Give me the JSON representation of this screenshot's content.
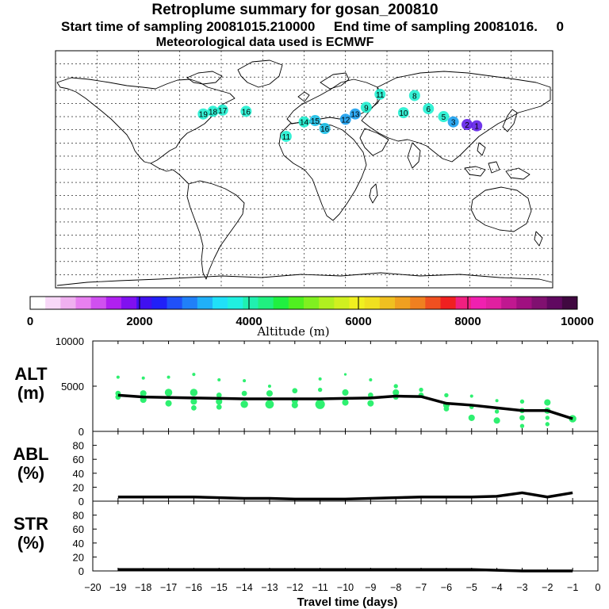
{
  "title_line1": "Retroplume summary for gosan_200810",
  "title_line2": "Start time of sampling 20081015.210000     End time of sampling 20081016.     0",
  "title_line3": "Meteorological data used is ECMWF",
  "map": {
    "plume_labels": [
      {
        "text": "19",
        "lon": -73,
        "lat": 42,
        "color": "#1ff0d0"
      },
      {
        "text": "18",
        "lon": -66,
        "lat": 44,
        "color": "#1ff0d0"
      },
      {
        "text": "17",
        "lon": -59,
        "lat": 45,
        "color": "#1ff0d0"
      },
      {
        "text": "16",
        "lon": -42,
        "lat": 44,
        "color": "#1ff0d0"
      },
      {
        "text": "11",
        "lon": -13,
        "lat": 25,
        "color": "#1ff0d0"
      },
      {
        "text": "14",
        "lon": 0,
        "lat": 36,
        "color": "#1ff0d0"
      },
      {
        "text": "15",
        "lon": 8,
        "lat": 37,
        "color": "#1cc0e8"
      },
      {
        "text": "16",
        "lon": 15,
        "lat": 31,
        "color": "#1cc0e8"
      },
      {
        "text": "12",
        "lon": 30,
        "lat": 38,
        "color": "#1aa0f0"
      },
      {
        "text": "13",
        "lon": 37,
        "lat": 42,
        "color": "#1aa0f0"
      },
      {
        "text": "9",
        "lon": 45,
        "lat": 47,
        "color": "#1ff0d0"
      },
      {
        "text": "10",
        "lon": 72,
        "lat": 43,
        "color": "#1ff0d0"
      },
      {
        "text": "11",
        "lon": 55,
        "lat": 57,
        "color": "#1ff0d0"
      },
      {
        "text": "8",
        "lon": 80,
        "lat": 56,
        "color": "#1ff0d0"
      },
      {
        "text": "6",
        "lon": 90,
        "lat": 46,
        "color": "#1ff0d0"
      },
      {
        "text": "5",
        "lon": 101,
        "lat": 40,
        "color": "#1ff0d0"
      },
      {
        "text": "3",
        "lon": 108,
        "lat": 36,
        "color": "#1aa0f0"
      },
      {
        "text": "2",
        "lon": 118,
        "lat": 34,
        "color": "#6020e8"
      },
      {
        "text": "1",
        "lon": 125,
        "lat": 33,
        "color": "#6020e8"
      }
    ]
  },
  "colorbar": {
    "xlabel": "Altitude (m)",
    "ticks": [
      "0",
      "2000",
      "4000",
      "6000",
      "8000",
      "10000"
    ],
    "colors": [
      "#ffffff",
      "#f8d8f8",
      "#f0b0f0",
      "#e880f0",
      "#d050f0",
      "#b020f0",
      "#8010f0",
      "#4010f0",
      "#2020f8",
      "#2050f8",
      "#2080f8",
      "#20b0f8",
      "#20e0f8",
      "#20f0e0",
      "#20f0b0",
      "#20f080",
      "#20f040",
      "#50f020",
      "#80f020",
      "#b0f020",
      "#d0f020",
      "#f0f020",
      "#f0e020",
      "#f0c020",
      "#f0a020",
      "#f08020",
      "#f05020",
      "#f02020",
      "#f02080",
      "#f020b0",
      "#e020a0",
      "#c01890",
      "#a01080",
      "#801070",
      "#600860",
      "#400840"
    ]
  },
  "chart_data": [
    {
      "type": "line",
      "panel": "ALT",
      "ylabel": "ALT\n(m)",
      "ylim": [
        0,
        10000
      ],
      "yticks": [
        "0",
        "5000",
        "10000"
      ],
      "x": [
        -19,
        -18,
        -17,
        -16,
        -15,
        -14,
        -13,
        -12,
        -11,
        -10,
        -9,
        -8,
        -7,
        -6,
        -5,
        -4,
        -3,
        -2,
        -1
      ],
      "series": [
        {
          "name": "mean altitude",
          "values": [
            4000,
            3800,
            3750,
            3700,
            3650,
            3600,
            3600,
            3600,
            3600,
            3650,
            3700,
            3900,
            3850,
            3100,
            2900,
            2600,
            2300,
            2300,
            1400
          ]
        }
      ],
      "scatter": [
        {
          "x": -19,
          "y": 6000,
          "r": 1.5
        },
        {
          "x": -19,
          "y": 4200,
          "r": 2.5
        },
        {
          "x": -19,
          "y": 3800,
          "r": 2.5
        },
        {
          "x": -18,
          "y": 5900,
          "r": 1.5
        },
        {
          "x": -18,
          "y": 4200,
          "r": 3
        },
        {
          "x": -18,
          "y": 3500,
          "r": 3
        },
        {
          "x": -17,
          "y": 6000,
          "r": 1.5
        },
        {
          "x": -17,
          "y": 4300,
          "r": 3.5
        },
        {
          "x": -17,
          "y": 3100,
          "r": 3
        },
        {
          "x": -16,
          "y": 6300,
          "r": 1.5
        },
        {
          "x": -16,
          "y": 4300,
          "r": 3.5
        },
        {
          "x": -16,
          "y": 3300,
          "r": 3
        },
        {
          "x": -16,
          "y": 2600,
          "r": 2.5
        },
        {
          "x": -15,
          "y": 5700,
          "r": 1.5
        },
        {
          "x": -15,
          "y": 4000,
          "r": 2.5
        },
        {
          "x": -15,
          "y": 3300,
          "r": 3
        },
        {
          "x": -15,
          "y": 2700,
          "r": 2.5
        },
        {
          "x": -14,
          "y": 5600,
          "r": 1.5
        },
        {
          "x": -14,
          "y": 4200,
          "r": 2.5
        },
        {
          "x": -14,
          "y": 3000,
          "r": 3.5
        },
        {
          "x": -13,
          "y": 5000,
          "r": 1.5
        },
        {
          "x": -13,
          "y": 4200,
          "r": 3
        },
        {
          "x": -13,
          "y": 3000,
          "r": 4
        },
        {
          "x": -12,
          "y": 4500,
          "r": 2.5
        },
        {
          "x": -12,
          "y": 3400,
          "r": 3
        },
        {
          "x": -12,
          "y": 2900,
          "r": 3
        },
        {
          "x": -11,
          "y": 5800,
          "r": 1.5
        },
        {
          "x": -11,
          "y": 4600,
          "r": 2
        },
        {
          "x": -11,
          "y": 3000,
          "r": 4.5
        },
        {
          "x": -10,
          "y": 6300,
          "r": 1.2
        },
        {
          "x": -10,
          "y": 4300,
          "r": 3
        },
        {
          "x": -10,
          "y": 3200,
          "r": 3
        },
        {
          "x": -9,
          "y": 5700,
          "r": 1.5
        },
        {
          "x": -9,
          "y": 4000,
          "r": 2.5
        },
        {
          "x": -9,
          "y": 3100,
          "r": 3
        },
        {
          "x": -8,
          "y": 5000,
          "r": 2
        },
        {
          "x": -8,
          "y": 4300,
          "r": 3
        },
        {
          "x": -8,
          "y": 3800,
          "r": 2.5
        },
        {
          "x": -7,
          "y": 4600,
          "r": 2
        },
        {
          "x": -7,
          "y": 4000,
          "r": 2.5
        },
        {
          "x": -6,
          "y": 4000,
          "r": 2
        },
        {
          "x": -6,
          "y": 2900,
          "r": 3
        },
        {
          "x": -6,
          "y": 2500,
          "r": 2.5
        },
        {
          "x": -5,
          "y": 3900,
          "r": 1.5
        },
        {
          "x": -5,
          "y": 2700,
          "r": 2
        },
        {
          "x": -5,
          "y": 1500,
          "r": 3
        },
        {
          "x": -4,
          "y": 3400,
          "r": 1.5
        },
        {
          "x": -4,
          "y": 2200,
          "r": 2
        },
        {
          "x": -4,
          "y": 1200,
          "r": 3
        },
        {
          "x": -3,
          "y": 3300,
          "r": 2
        },
        {
          "x": -3,
          "y": 2300,
          "r": 2.5
        },
        {
          "x": -3,
          "y": 1500,
          "r": 2.5
        },
        {
          "x": -3,
          "y": 600,
          "r": 2
        },
        {
          "x": -2,
          "y": 3200,
          "r": 3
        },
        {
          "x": -2,
          "y": 2300,
          "r": 3
        },
        {
          "x": -2,
          "y": 1500,
          "r": 2
        },
        {
          "x": -2,
          "y": 800,
          "r": 2
        },
        {
          "x": -1,
          "y": 1400,
          "r": 3.5
        }
      ]
    },
    {
      "type": "line",
      "panel": "ABL",
      "ylabel": "ABL\n(%)",
      "ylim": [
        0,
        100
      ],
      "yticks": [
        "0",
        "20",
        "40",
        "60",
        "80"
      ],
      "x": [
        -19,
        -18,
        -17,
        -16,
        -15,
        -14,
        -13,
        -12,
        -11,
        -10,
        -9,
        -8,
        -7,
        -6,
        -5,
        -4,
        -3,
        -2,
        -1
      ],
      "series": [
        {
          "name": "ABL fraction",
          "values": [
            6,
            6,
            6,
            6,
            5,
            4,
            4,
            3,
            3,
            3,
            4,
            5,
            6,
            6,
            6,
            7,
            12,
            6,
            12
          ]
        }
      ]
    },
    {
      "type": "line",
      "panel": "STR",
      "ylabel": "STR\n(%)",
      "ylim": [
        0,
        100
      ],
      "yticks": [
        "0",
        "20",
        "40",
        "60",
        "80"
      ],
      "x": [
        -19,
        -18,
        -17,
        -16,
        -15,
        -14,
        -13,
        -12,
        -11,
        -10,
        -9,
        -8,
        -7,
        -6,
        -5,
        -4,
        -3,
        -2,
        -1
      ],
      "series": [
        {
          "name": "stratosphere fraction",
          "values": [
            2,
            2,
            2,
            2,
            2,
            2,
            2,
            2,
            2,
            2,
            2,
            2,
            2,
            2,
            2,
            1,
            0,
            0,
            0
          ]
        }
      ]
    }
  ],
  "xaxis": {
    "label": "Travel time (days)",
    "ticks": [
      "−20",
      "−19",
      "−18",
      "−17",
      "−16",
      "−15",
      "−14",
      "−13",
      "−12",
      "−11",
      "−10",
      "−9",
      "−8",
      "−7",
      "−6",
      "−5",
      "−4",
      "−3",
      "−2",
      "−1",
      "0"
    ]
  }
}
